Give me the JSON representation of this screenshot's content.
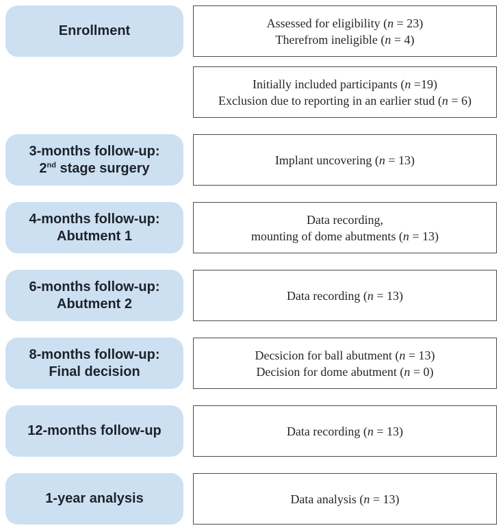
{
  "figure": {
    "type": "study-flow-diagram",
    "background": "#ffffff",
    "stage_fill": "#cce0f2",
    "stage_text_color": "#1d222b",
    "box_border_color": "#4a4a4a",
    "box_text_color": "#262626"
  },
  "rows": [
    {
      "id": "enrollment",
      "stage_line1": "Enrollment",
      "box_line1_pre": "Assessed for eligibility (",
      "box_line1_n": "n",
      "box_line1_post": " = 23)",
      "box_line2_pre": "Therefrom ineligible (",
      "box_line2_n": "n",
      "box_line2_post": " = 4)"
    },
    {
      "id": "initial-inclusion",
      "box_line1_pre": "Initially included participants (",
      "box_line1_n": "n",
      "box_line1_post": " =19)",
      "box_line2_pre": "Exclusion due to reporting in an earlier stud (",
      "box_line2_n": "n",
      "box_line2_post": " = 6)"
    },
    {
      "id": "3-months-follow-up",
      "stage_line1": "3-months follow-up:",
      "stage_line2_pre": "2",
      "stage_line2_sup": "nd",
      "stage_line2_post": " stage surgery",
      "box_line1_pre": "Implant uncovering (",
      "box_line1_n": "n",
      "box_line1_post": " = 13)"
    },
    {
      "id": "4-months-follow-up",
      "stage_line1": "4-months follow-up:",
      "stage_line2": "Abutment 1",
      "box_line1_pre": "Data recording,",
      "box_line2_pre": "mounting of dome abutments (",
      "box_line2_n": "n",
      "box_line2_post": " = 13)"
    },
    {
      "id": "6-months-follow-up",
      "stage_line1": "6-months follow-up:",
      "stage_line2": "Abutment 2",
      "box_line1_pre": "Data recording (",
      "box_line1_n": "n",
      "box_line1_post": " = 13)"
    },
    {
      "id": "8-months-follow-up",
      "stage_line1": "8-months follow-up:",
      "stage_line2": "Final decision",
      "box_line1_pre": "Decsicion for ball abutment (",
      "box_line1_n": "n",
      "box_line1_post": " = 13)",
      "box_line2_pre": "Decision for dome abutment (",
      "box_line2_n": "n",
      "box_line2_post": " = 0)"
    },
    {
      "id": "12-months-follow-up",
      "stage_line1": "12-months follow-up",
      "box_line1_pre": "Data recording (",
      "box_line1_n": "n",
      "box_line1_post": " = 13)"
    },
    {
      "id": "1-year-analysis",
      "stage_line1": "1-year analysis",
      "box_line1_pre": "Data analysis (",
      "box_line1_n": "n",
      "box_line1_post": " = 13)"
    }
  ]
}
